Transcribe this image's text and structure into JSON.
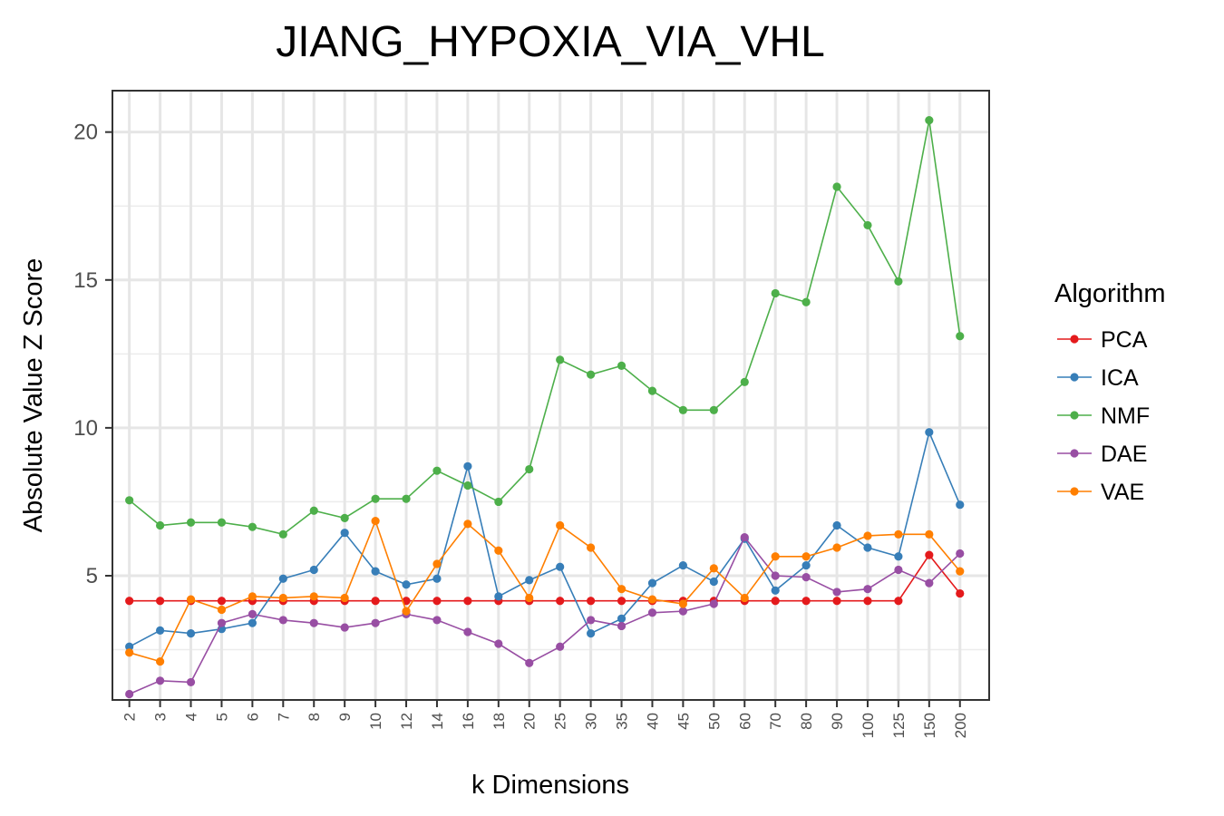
{
  "chart_data": {
    "type": "line",
    "title": "JIANG_HYPOXIA_VIA_VHL",
    "xlabel": "k Dimensions",
    "ylabel": "Absolute Value Z Score",
    "categories": [
      "2",
      "3",
      "4",
      "5",
      "6",
      "7",
      "8",
      "9",
      "10",
      "12",
      "14",
      "16",
      "18",
      "20",
      "25",
      "30",
      "35",
      "40",
      "45",
      "50",
      "60",
      "70",
      "80",
      "90",
      "100",
      "125",
      "150",
      "200"
    ],
    "yticks": [
      5,
      10,
      15,
      20
    ],
    "ylim": [
      0.8,
      21.4
    ],
    "grid": true,
    "legend_title": "Algorithm",
    "legend_position": "right",
    "series": [
      {
        "name": "PCA",
        "color": "#e41a1c",
        "values": [
          4.15,
          4.15,
          4.15,
          4.15,
          4.15,
          4.15,
          4.15,
          4.15,
          4.15,
          4.15,
          4.15,
          4.15,
          4.15,
          4.15,
          4.15,
          4.15,
          4.15,
          4.15,
          4.15,
          4.15,
          4.15,
          4.15,
          4.15,
          4.15,
          4.15,
          4.15,
          5.7,
          4.4
        ]
      },
      {
        "name": "ICA",
        "color": "#377eb8",
        "values": [
          2.6,
          3.15,
          3.05,
          3.2,
          3.4,
          4.9,
          5.2,
          6.45,
          5.15,
          4.7,
          4.9,
          8.7,
          4.3,
          4.85,
          5.3,
          3.05,
          3.55,
          4.75,
          5.35,
          4.8,
          6.25,
          4.5,
          5.35,
          6.7,
          5.95,
          5.65,
          9.85,
          7.4
        ]
      },
      {
        "name": "NMF",
        "color": "#4daf4a",
        "values": [
          7.55,
          6.7,
          6.8,
          6.8,
          6.65,
          6.4,
          7.2,
          6.95,
          7.6,
          7.6,
          8.55,
          8.05,
          7.5,
          8.6,
          12.3,
          11.8,
          12.1,
          11.25,
          10.6,
          10.6,
          11.55,
          14.55,
          14.25,
          18.15,
          16.85,
          14.95,
          20.4,
          13.1
        ]
      },
      {
        "name": "DAE",
        "color": "#984ea3",
        "values": [
          1.0,
          1.45,
          1.4,
          3.4,
          3.7,
          3.5,
          3.4,
          3.25,
          3.4,
          3.7,
          3.5,
          3.1,
          2.7,
          2.05,
          2.6,
          3.5,
          3.3,
          3.75,
          3.8,
          4.05,
          6.3,
          5.0,
          4.95,
          4.45,
          4.55,
          5.2,
          4.75,
          5.75
        ]
      },
      {
        "name": "VAE",
        "color": "#ff7f00",
        "values": [
          2.4,
          2.1,
          4.2,
          3.85,
          4.3,
          4.25,
          4.3,
          4.25,
          6.85,
          3.8,
          5.4,
          6.75,
          5.85,
          4.25,
          6.7,
          5.95,
          4.55,
          4.2,
          4.05,
          5.25,
          4.25,
          5.65,
          5.65,
          5.95,
          6.35,
          6.4,
          6.4,
          5.15
        ]
      }
    ]
  }
}
